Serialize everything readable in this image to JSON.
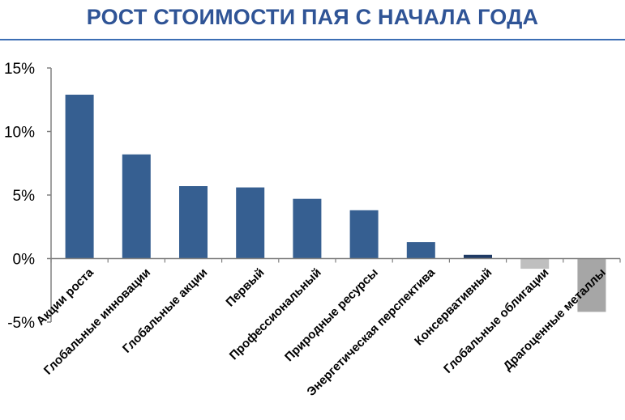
{
  "header": {
    "title": "РОСТ СТОИМОСТИ ПАЯ С НАЧАЛА ГОДА",
    "title_color": "#2F5496",
    "divider_color": "#3C6EB4"
  },
  "colors": {
    "bar_primary": "#365F91",
    "bar_dark": "#1F3A64",
    "bar_negative": "#BFBFBF",
    "bar_negative_dark": "#A6A6A6",
    "axis": "#808080"
  },
  "chart_data": {
    "type": "bar",
    "title": "",
    "xlabel": "",
    "ylabel": "",
    "ylim": [
      -5,
      15
    ],
    "yticks": [
      -5,
      0,
      5,
      10,
      15
    ],
    "ytick_labels": [
      "-5%",
      "0%",
      "5%",
      "10%",
      "15%"
    ],
    "grid": false,
    "legend": "none",
    "categories": [
      "Акции роста",
      "Глобальные инновации",
      "Глобальные акции",
      "Первый",
      "Профессиональный",
      "Природные ресурсы",
      "Энергетическая перспектива",
      "Консервативный",
      "Глобальные облигации",
      "Драгоценные  металлы"
    ],
    "values": [
      12.9,
      8.2,
      5.7,
      5.6,
      4.7,
      3.8,
      1.3,
      0.3,
      -0.8,
      -4.2
    ]
  }
}
